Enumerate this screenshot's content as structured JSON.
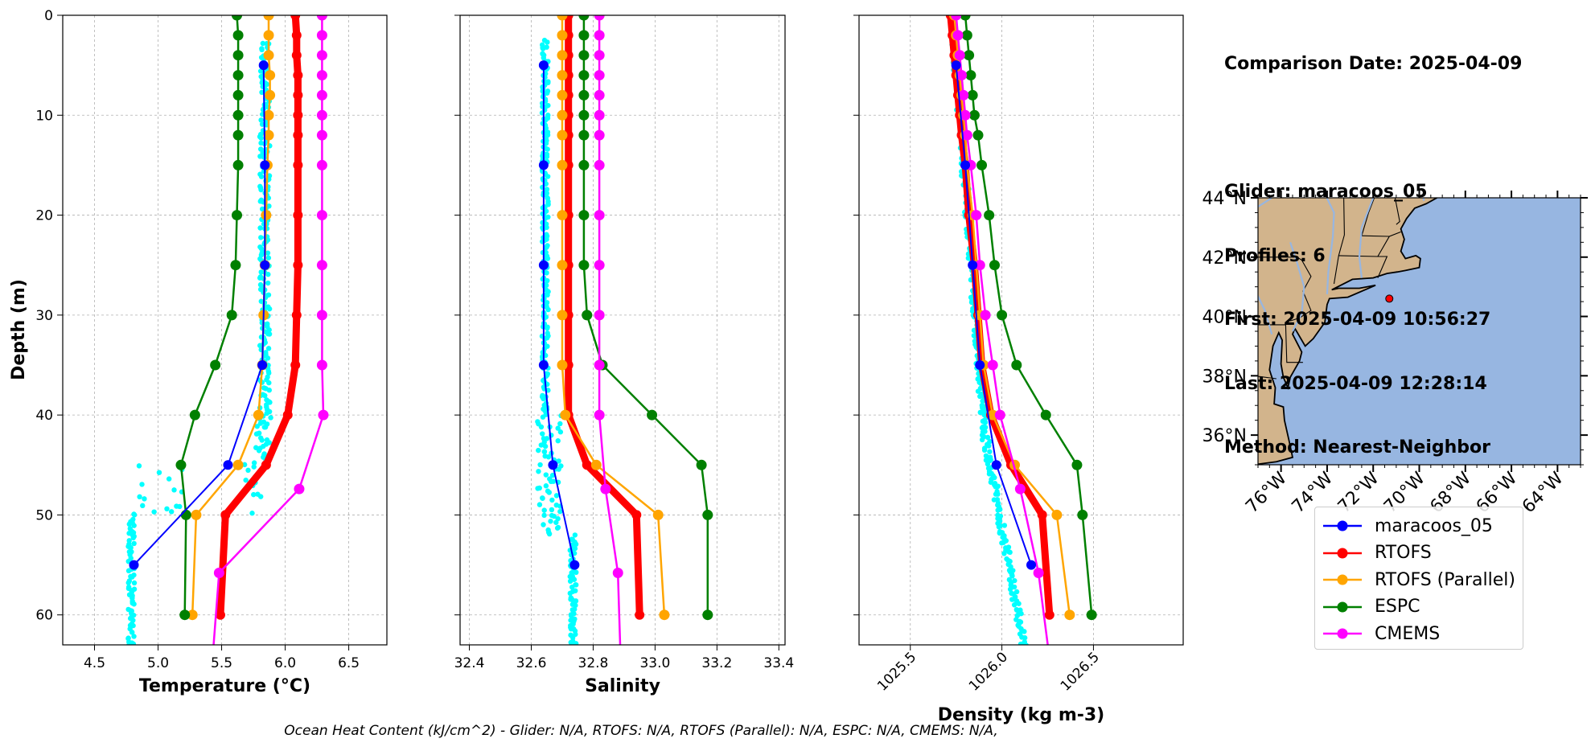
{
  "info": {
    "comparison": "Comparison Date: 2025-04-09",
    "glider": "Glider: maracoos_05",
    "profiles": "Profiles: 6",
    "first": "First: 2025-04-09 10:56:27",
    "last": "Last: 2025-04-09 12:28:14",
    "method": "Method: Nearest-Neighbor"
  },
  "footer": "Ocean Heat Content (kJ/cm^2) - Glider: N/A,  RTOFS: N/A,  RTOFS (Parallel): N/A,  ESPC: N/A,  CMEMS: N/A,",
  "colors": {
    "glider": "#0000ff",
    "rtofs": "#ff0000",
    "parallel": "#ffa500",
    "espc": "#008000",
    "cmems": "#ff00ff",
    "raw": "#00ffff",
    "land": "#d2b48c",
    "ocean": "#97b6e1",
    "rivers": "#97b6e1",
    "point": "#ff0000"
  },
  "legend": [
    {
      "name": "maracoos_05",
      "color": "#0000ff"
    },
    {
      "name": "RTOFS",
      "color": "#ff0000"
    },
    {
      "name": "RTOFS (Parallel)",
      "color": "#ffa500"
    },
    {
      "name": "ESPC",
      "color": "#008000"
    },
    {
      "name": "CMEMS",
      "color": "#ff00ff"
    }
  ],
  "chart_data": [
    {
      "type": "line",
      "xlabel": "Temperature (°C)",
      "ylabel": "Depth (m)",
      "xlim": [
        4.25,
        6.8
      ],
      "ylim": [
        63,
        0
      ],
      "xticks": [
        4.5,
        5.0,
        5.5,
        6.0,
        6.5
      ],
      "xtick_labels": [
        "4.5",
        "5.0",
        "5.5",
        "6.0",
        "6.5"
      ],
      "yticks": [
        0,
        10,
        20,
        30,
        40,
        50,
        60
      ],
      "ytick_labels": [
        "0",
        "10",
        "20",
        "30",
        "40",
        "50",
        "60"
      ],
      "grid": true,
      "series": [
        {
          "name": "maracoos_05",
          "depth": [
            5,
            15,
            25,
            35,
            45,
            55
          ],
          "values": [
            5.83,
            5.84,
            5.84,
            5.82,
            5.55,
            4.81
          ]
        },
        {
          "name": "RTOFS",
          "depth": [
            0,
            2,
            4,
            6,
            8,
            10,
            12,
            15,
            20,
            25,
            30,
            35,
            40,
            45,
            50,
            60
          ],
          "values": [
            6.08,
            6.09,
            6.09,
            6.1,
            6.1,
            6.1,
            6.1,
            6.1,
            6.1,
            6.1,
            6.09,
            6.08,
            6.02,
            5.85,
            5.53,
            5.49
          ]
        },
        {
          "name": "RTOFS (Parallel)",
          "depth": [
            0,
            2,
            4,
            6,
            8,
            10,
            12,
            15,
            20,
            25,
            30,
            35,
            40,
            45,
            50,
            60
          ],
          "values": [
            5.87,
            5.87,
            5.87,
            5.88,
            5.88,
            5.87,
            5.87,
            5.86,
            5.85,
            5.84,
            5.83,
            5.82,
            5.79,
            5.63,
            5.3,
            5.27
          ]
        },
        {
          "name": "ESPC",
          "depth": [
            0,
            2,
            4,
            6,
            8,
            10,
            12,
            15,
            20,
            25,
            30,
            35,
            40,
            45,
            50,
            60
          ],
          "values": [
            5.62,
            5.63,
            5.63,
            5.63,
            5.63,
            5.63,
            5.63,
            5.63,
            5.62,
            5.61,
            5.58,
            5.45,
            5.29,
            5.18,
            5.22,
            5.21
          ]
        },
        {
          "name": "CMEMS",
          "depth": [
            0,
            2,
            4,
            6,
            8,
            10,
            12,
            15,
            20,
            25,
            30,
            35,
            40,
            47.4,
            55.8,
            65.8
          ],
          "values": [
            6.29,
            6.29,
            6.29,
            6.29,
            6.29,
            6.29,
            6.29,
            6.29,
            6.29,
            6.29,
            6.29,
            6.29,
            6.3,
            6.11,
            5.48,
            5.42
          ]
        }
      ]
    },
    {
      "type": "line",
      "xlabel": "Salinity",
      "xlim": [
        32.37,
        33.42
      ],
      "ylim": [
        63,
        0
      ],
      "xticks": [
        32.4,
        32.6,
        32.8,
        33.0,
        33.2,
        33.4
      ],
      "xtick_labels": [
        "32.4",
        "32.6",
        "32.8",
        "33.0",
        "33.2",
        "33.4"
      ],
      "grid": true,
      "series": [
        {
          "name": "maracoos_05",
          "depth": [
            5,
            15,
            25,
            35,
            45,
            55
          ],
          "values": [
            32.64,
            32.64,
            32.64,
            32.64,
            32.67,
            32.74
          ]
        },
        {
          "name": "RTOFS",
          "depth": [
            0,
            2,
            4,
            6,
            8,
            10,
            12,
            15,
            20,
            25,
            30,
            35,
            40,
            45,
            50,
            60
          ],
          "values": [
            32.72,
            32.72,
            32.72,
            32.72,
            32.72,
            32.72,
            32.72,
            32.72,
            32.72,
            32.72,
            32.72,
            32.72,
            32.72,
            32.78,
            32.94,
            32.95
          ]
        },
        {
          "name": "RTOFS (Parallel)",
          "depth": [
            0,
            2,
            4,
            6,
            8,
            10,
            12,
            15,
            20,
            25,
            30,
            35,
            40,
            45,
            50,
            60
          ],
          "values": [
            32.7,
            32.7,
            32.7,
            32.7,
            32.7,
            32.7,
            32.7,
            32.7,
            32.7,
            32.7,
            32.7,
            32.7,
            32.71,
            32.81,
            33.01,
            33.03
          ]
        },
        {
          "name": "ESPC",
          "depth": [
            0,
            2,
            4,
            6,
            8,
            10,
            12,
            15,
            20,
            25,
            30,
            35,
            40,
            45,
            50,
            60
          ],
          "values": [
            32.77,
            32.77,
            32.77,
            32.77,
            32.77,
            32.77,
            32.77,
            32.77,
            32.77,
            32.77,
            32.78,
            32.83,
            32.99,
            33.15,
            33.17,
            33.17
          ]
        },
        {
          "name": "CMEMS",
          "depth": [
            0,
            2,
            4,
            6,
            8,
            10,
            12,
            15,
            20,
            25,
            30,
            35,
            40,
            47.4,
            55.8,
            65.8
          ],
          "values": [
            32.82,
            32.82,
            32.82,
            32.82,
            32.82,
            32.82,
            32.82,
            32.82,
            32.82,
            32.82,
            32.82,
            32.82,
            32.82,
            32.84,
            32.88,
            32.89
          ]
        }
      ]
    },
    {
      "type": "line",
      "xlabel": "Density (kg m-3)",
      "xlim": [
        1025.22,
        1026.99
      ],
      "ylim": [
        63,
        0
      ],
      "xticks": [
        1025.5,
        1026.0,
        1026.5
      ],
      "xtick_labels": [
        "1025.5",
        "1026.0",
        "1026.5"
      ],
      "grid": true,
      "series": [
        {
          "name": "maracoos_05",
          "depth": [
            5,
            15,
            25,
            35,
            45,
            55
          ],
          "values": [
            1025.75,
            1025.8,
            1025.84,
            1025.88,
            1025.97,
            1026.16
          ]
        },
        {
          "name": "RTOFS",
          "depth": [
            0,
            2,
            4,
            6,
            8,
            10,
            12,
            15,
            20,
            25,
            30,
            35,
            40,
            45,
            50,
            60
          ],
          "values": [
            1025.72,
            1025.73,
            1025.74,
            1025.75,
            1025.76,
            1025.77,
            1025.78,
            1025.8,
            1025.82,
            1025.85,
            1025.87,
            1025.89,
            1025.94,
            1026.05,
            1026.22,
            1026.26
          ]
        },
        {
          "name": "RTOFS (Parallel)",
          "depth": [
            0,
            2,
            4,
            6,
            8,
            10,
            12,
            15,
            20,
            25,
            30,
            35,
            40,
            45,
            50,
            60
          ],
          "values": [
            1025.74,
            1025.75,
            1025.76,
            1025.77,
            1025.78,
            1025.79,
            1025.8,
            1025.81,
            1025.84,
            1025.86,
            1025.88,
            1025.9,
            1025.95,
            1026.07,
            1026.3,
            1026.37
          ]
        },
        {
          "name": "ESPC",
          "depth": [
            0,
            2,
            4,
            6,
            8,
            10,
            12,
            15,
            20,
            25,
            30,
            35,
            40,
            45,
            50,
            60
          ],
          "values": [
            1025.8,
            1025.81,
            1025.82,
            1025.83,
            1025.84,
            1025.85,
            1025.87,
            1025.89,
            1025.93,
            1025.96,
            1026.0,
            1026.08,
            1026.24,
            1026.41,
            1026.44,
            1026.49
          ]
        },
        {
          "name": "CMEMS",
          "depth": [
            0,
            2,
            4,
            6,
            8,
            10,
            12,
            15,
            20,
            25,
            30,
            35,
            40,
            47.4,
            55.8,
            65.8
          ],
          "values": [
            1025.75,
            1025.76,
            1025.77,
            1025.78,
            1025.79,
            1025.8,
            1025.81,
            1025.83,
            1025.86,
            1025.88,
            1025.91,
            1025.95,
            1025.99,
            1026.1,
            1026.2,
            1026.27
          ]
        }
      ]
    },
    {
      "type": "map",
      "lat_range": [
        35,
        44
      ],
      "lon_range": [
        -77,
        -63
      ],
      "lat_ticks": [
        36,
        38,
        40,
        42,
        44
      ],
      "lat_tick_labels": [
        "36°N",
        "38°N",
        "40°N",
        "42°N",
        "44°N"
      ],
      "lon_ticks": [
        -76,
        -74,
        -72,
        -70,
        -68,
        -66,
        -64
      ],
      "lon_tick_labels": [
        "76°W",
        "74°W",
        "72°W",
        "70°W",
        "68°W",
        "66°W",
        "64°W"
      ],
      "glider_location": {
        "lon": -71.3,
        "lat": 40.6
      }
    }
  ]
}
